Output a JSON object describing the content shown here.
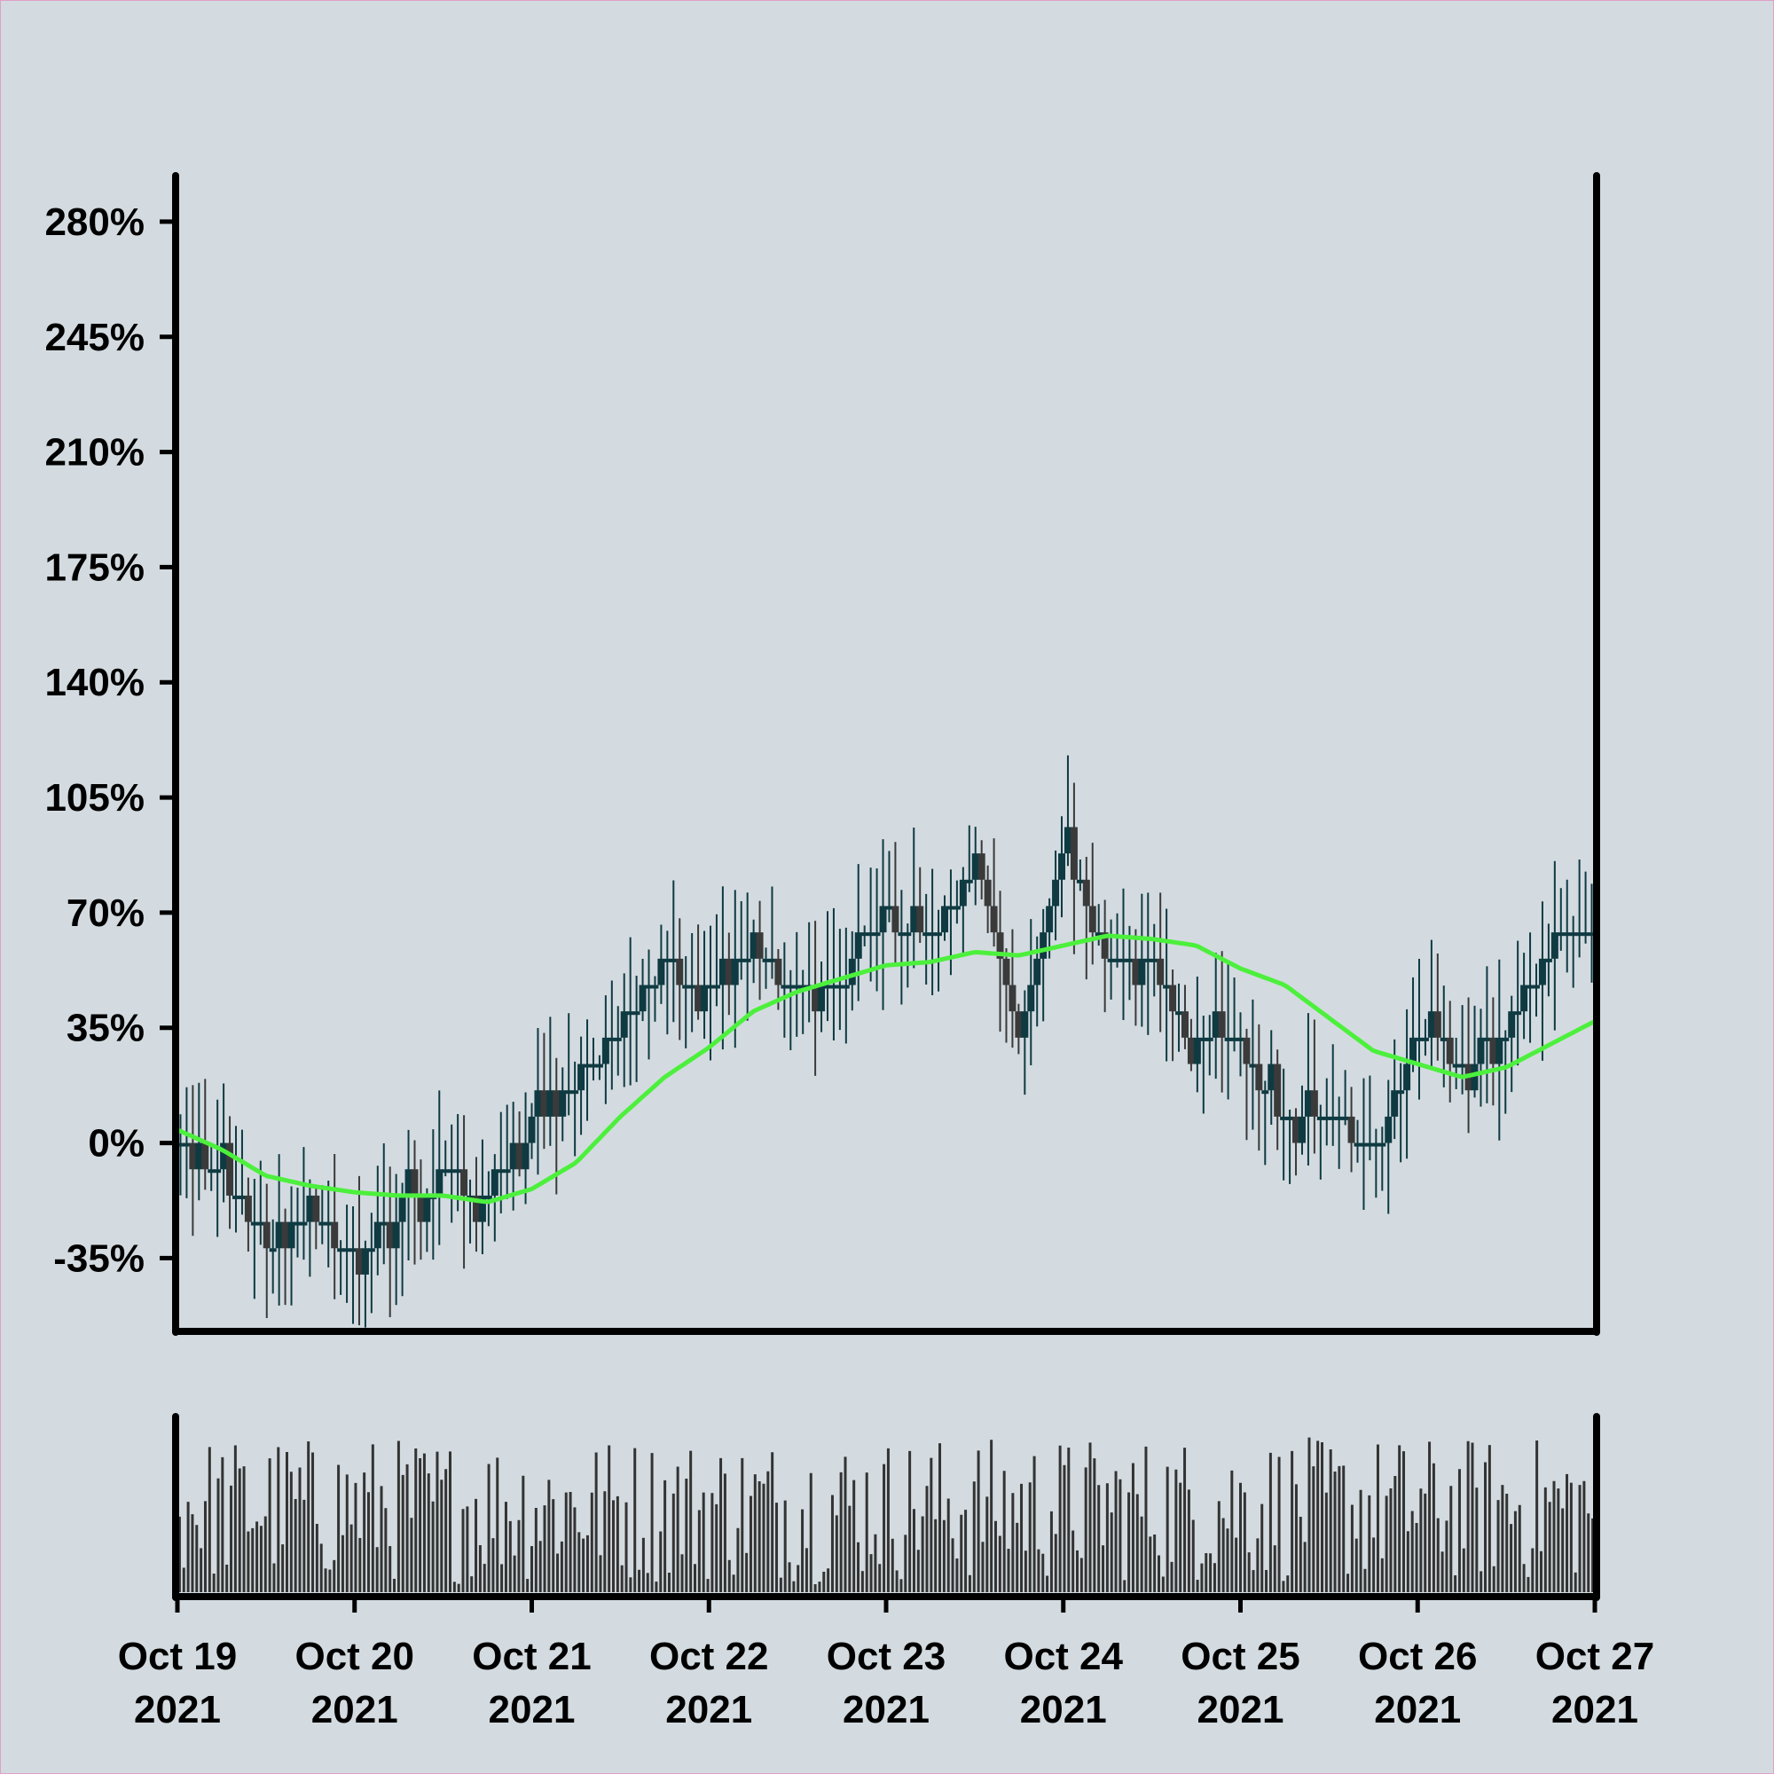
{
  "chart_data": {
    "type": "candlestick",
    "title": "",
    "xlabel": "",
    "ylabel": "",
    "ylim": [
      -57,
      294
    ],
    "y_ticks": [
      "280%",
      "245%",
      "210%",
      "175%",
      "140%",
      "105%",
      "70%",
      "35%",
      "0%",
      "-35%"
    ],
    "y_tick_values": [
      280,
      245,
      210,
      175,
      140,
      105,
      70,
      35,
      0,
      -35
    ],
    "x_range": [
      "2021-10-19 00:00",
      "2021-10-27 00:00"
    ],
    "x_ticks": [
      {
        "line1": "Oct 19",
        "line2": "2021",
        "date": "2021-10-19"
      },
      {
        "line1": "Oct 20",
        "line2": "2021",
        "date": "2021-10-20"
      },
      {
        "line1": "Oct 21",
        "line2": "2021",
        "date": "2021-10-21"
      },
      {
        "line1": "Oct 22",
        "line2": "2021",
        "date": "2021-10-22"
      },
      {
        "line1": "Oct 23",
        "line2": "2021",
        "date": "2021-10-23"
      },
      {
        "line1": "Oct 24",
        "line2": "2021",
        "date": "2021-10-24"
      },
      {
        "line1": "Oct 25",
        "line2": "2021",
        "date": "2021-10-25"
      },
      {
        "line1": "Oct 26",
        "line2": "2021",
        "date": "2021-10-26"
      },
      {
        "line1": "Oct 27",
        "line2": "2021",
        "date": "2021-10-27"
      }
    ],
    "price_path_close_percent": [
      {
        "date": "2021-10-19 00:00",
        "value": 2
      },
      {
        "date": "2021-10-19 06:00",
        "value": -10
      },
      {
        "date": "2021-10-19 12:00",
        "value": -30
      },
      {
        "date": "2021-10-19 18:00",
        "value": -20
      },
      {
        "date": "2021-10-20 00:00",
        "value": -35
      },
      {
        "date": "2021-10-20 06:00",
        "value": -20
      },
      {
        "date": "2021-10-20 12:00",
        "value": -10
      },
      {
        "date": "2021-10-20 18:00",
        "value": -15
      },
      {
        "date": "2021-10-21 00:00",
        "value": 5
      },
      {
        "date": "2021-10-21 06:00",
        "value": 20
      },
      {
        "date": "2021-10-21 12:00",
        "value": 35
      },
      {
        "date": "2021-10-21 18:00",
        "value": 55
      },
      {
        "date": "2021-10-22 00:00",
        "value": 45
      },
      {
        "date": "2021-10-22 06:00",
        "value": 60
      },
      {
        "date": "2021-10-22 12:00",
        "value": 45
      },
      {
        "date": "2021-10-22 18:00",
        "value": 50
      },
      {
        "date": "2021-10-23 00:00",
        "value": 70
      },
      {
        "date": "2021-10-23 06:00",
        "value": 60
      },
      {
        "date": "2021-10-23 12:00",
        "value": 85
      },
      {
        "date": "2021-10-23 18:00",
        "value": 35
      },
      {
        "date": "2021-10-24 00:00",
        "value": 90
      },
      {
        "date": "2021-10-24 06:00",
        "value": 55
      },
      {
        "date": "2021-10-24 12:00",
        "value": 55
      },
      {
        "date": "2021-10-24 18:00",
        "value": 30
      },
      {
        "date": "2021-10-25 00:00",
        "value": 30
      },
      {
        "date": "2021-10-25 06:00",
        "value": 5
      },
      {
        "date": "2021-10-25 12:00",
        "value": 10
      },
      {
        "date": "2021-10-25 18:00",
        "value": -5
      },
      {
        "date": "2021-10-26 00:00",
        "value": 35
      },
      {
        "date": "2021-10-26 06:00",
        "value": 25
      },
      {
        "date": "2021-10-26 12:00",
        "value": 35
      },
      {
        "date": "2021-10-26 18:00",
        "value": 60
      },
      {
        "date": "2021-10-27 00:00",
        "value": 60
      }
    ],
    "moving_average_percent": [
      {
        "date": "2021-10-19 00:00",
        "value": 4
      },
      {
        "date": "2021-10-19 06:00",
        "value": -2
      },
      {
        "date": "2021-10-19 12:00",
        "value": -10
      },
      {
        "date": "2021-10-19 18:00",
        "value": -13
      },
      {
        "date": "2021-10-20 00:00",
        "value": -15
      },
      {
        "date": "2021-10-20 06:00",
        "value": -16
      },
      {
        "date": "2021-10-20 12:00",
        "value": -16
      },
      {
        "date": "2021-10-20 18:00",
        "value": -18
      },
      {
        "date": "2021-10-21 00:00",
        "value": -14
      },
      {
        "date": "2021-10-21 06:00",
        "value": -6
      },
      {
        "date": "2021-10-21 12:00",
        "value": 8
      },
      {
        "date": "2021-10-21 18:00",
        "value": 20
      },
      {
        "date": "2021-10-22 00:00",
        "value": 29
      },
      {
        "date": "2021-10-22 06:00",
        "value": 40
      },
      {
        "date": "2021-10-22 12:00",
        "value": 46
      },
      {
        "date": "2021-10-22 18:00",
        "value": 50
      },
      {
        "date": "2021-10-23 00:00",
        "value": 54
      },
      {
        "date": "2021-10-23 06:00",
        "value": 55
      },
      {
        "date": "2021-10-23 12:00",
        "value": 58
      },
      {
        "date": "2021-10-23 18:00",
        "value": 57
      },
      {
        "date": "2021-10-24 00:00",
        "value": 60
      },
      {
        "date": "2021-10-24 06:00",
        "value": 63
      },
      {
        "date": "2021-10-24 12:00",
        "value": 62
      },
      {
        "date": "2021-10-24 18:00",
        "value": 60
      },
      {
        "date": "2021-10-25 00:00",
        "value": 53
      },
      {
        "date": "2021-10-25 06:00",
        "value": 48
      },
      {
        "date": "2021-10-25 12:00",
        "value": 38
      },
      {
        "date": "2021-10-25 18:00",
        "value": 28
      },
      {
        "date": "2021-10-26 00:00",
        "value": 24
      },
      {
        "date": "2021-10-26 06:00",
        "value": 20
      },
      {
        "date": "2021-10-26 12:00",
        "value": 23
      },
      {
        "date": "2021-10-26 18:00",
        "value": 30
      },
      {
        "date": "2021-10-27 00:00",
        "value": 37
      }
    ],
    "colors": {
      "background": "#d3dbe0",
      "candle_up": "#0f3a42",
      "candle_down": "#3a3a3a",
      "moving_average": "#4cf03c",
      "volume": "#333333",
      "axes": "#000000"
    }
  }
}
